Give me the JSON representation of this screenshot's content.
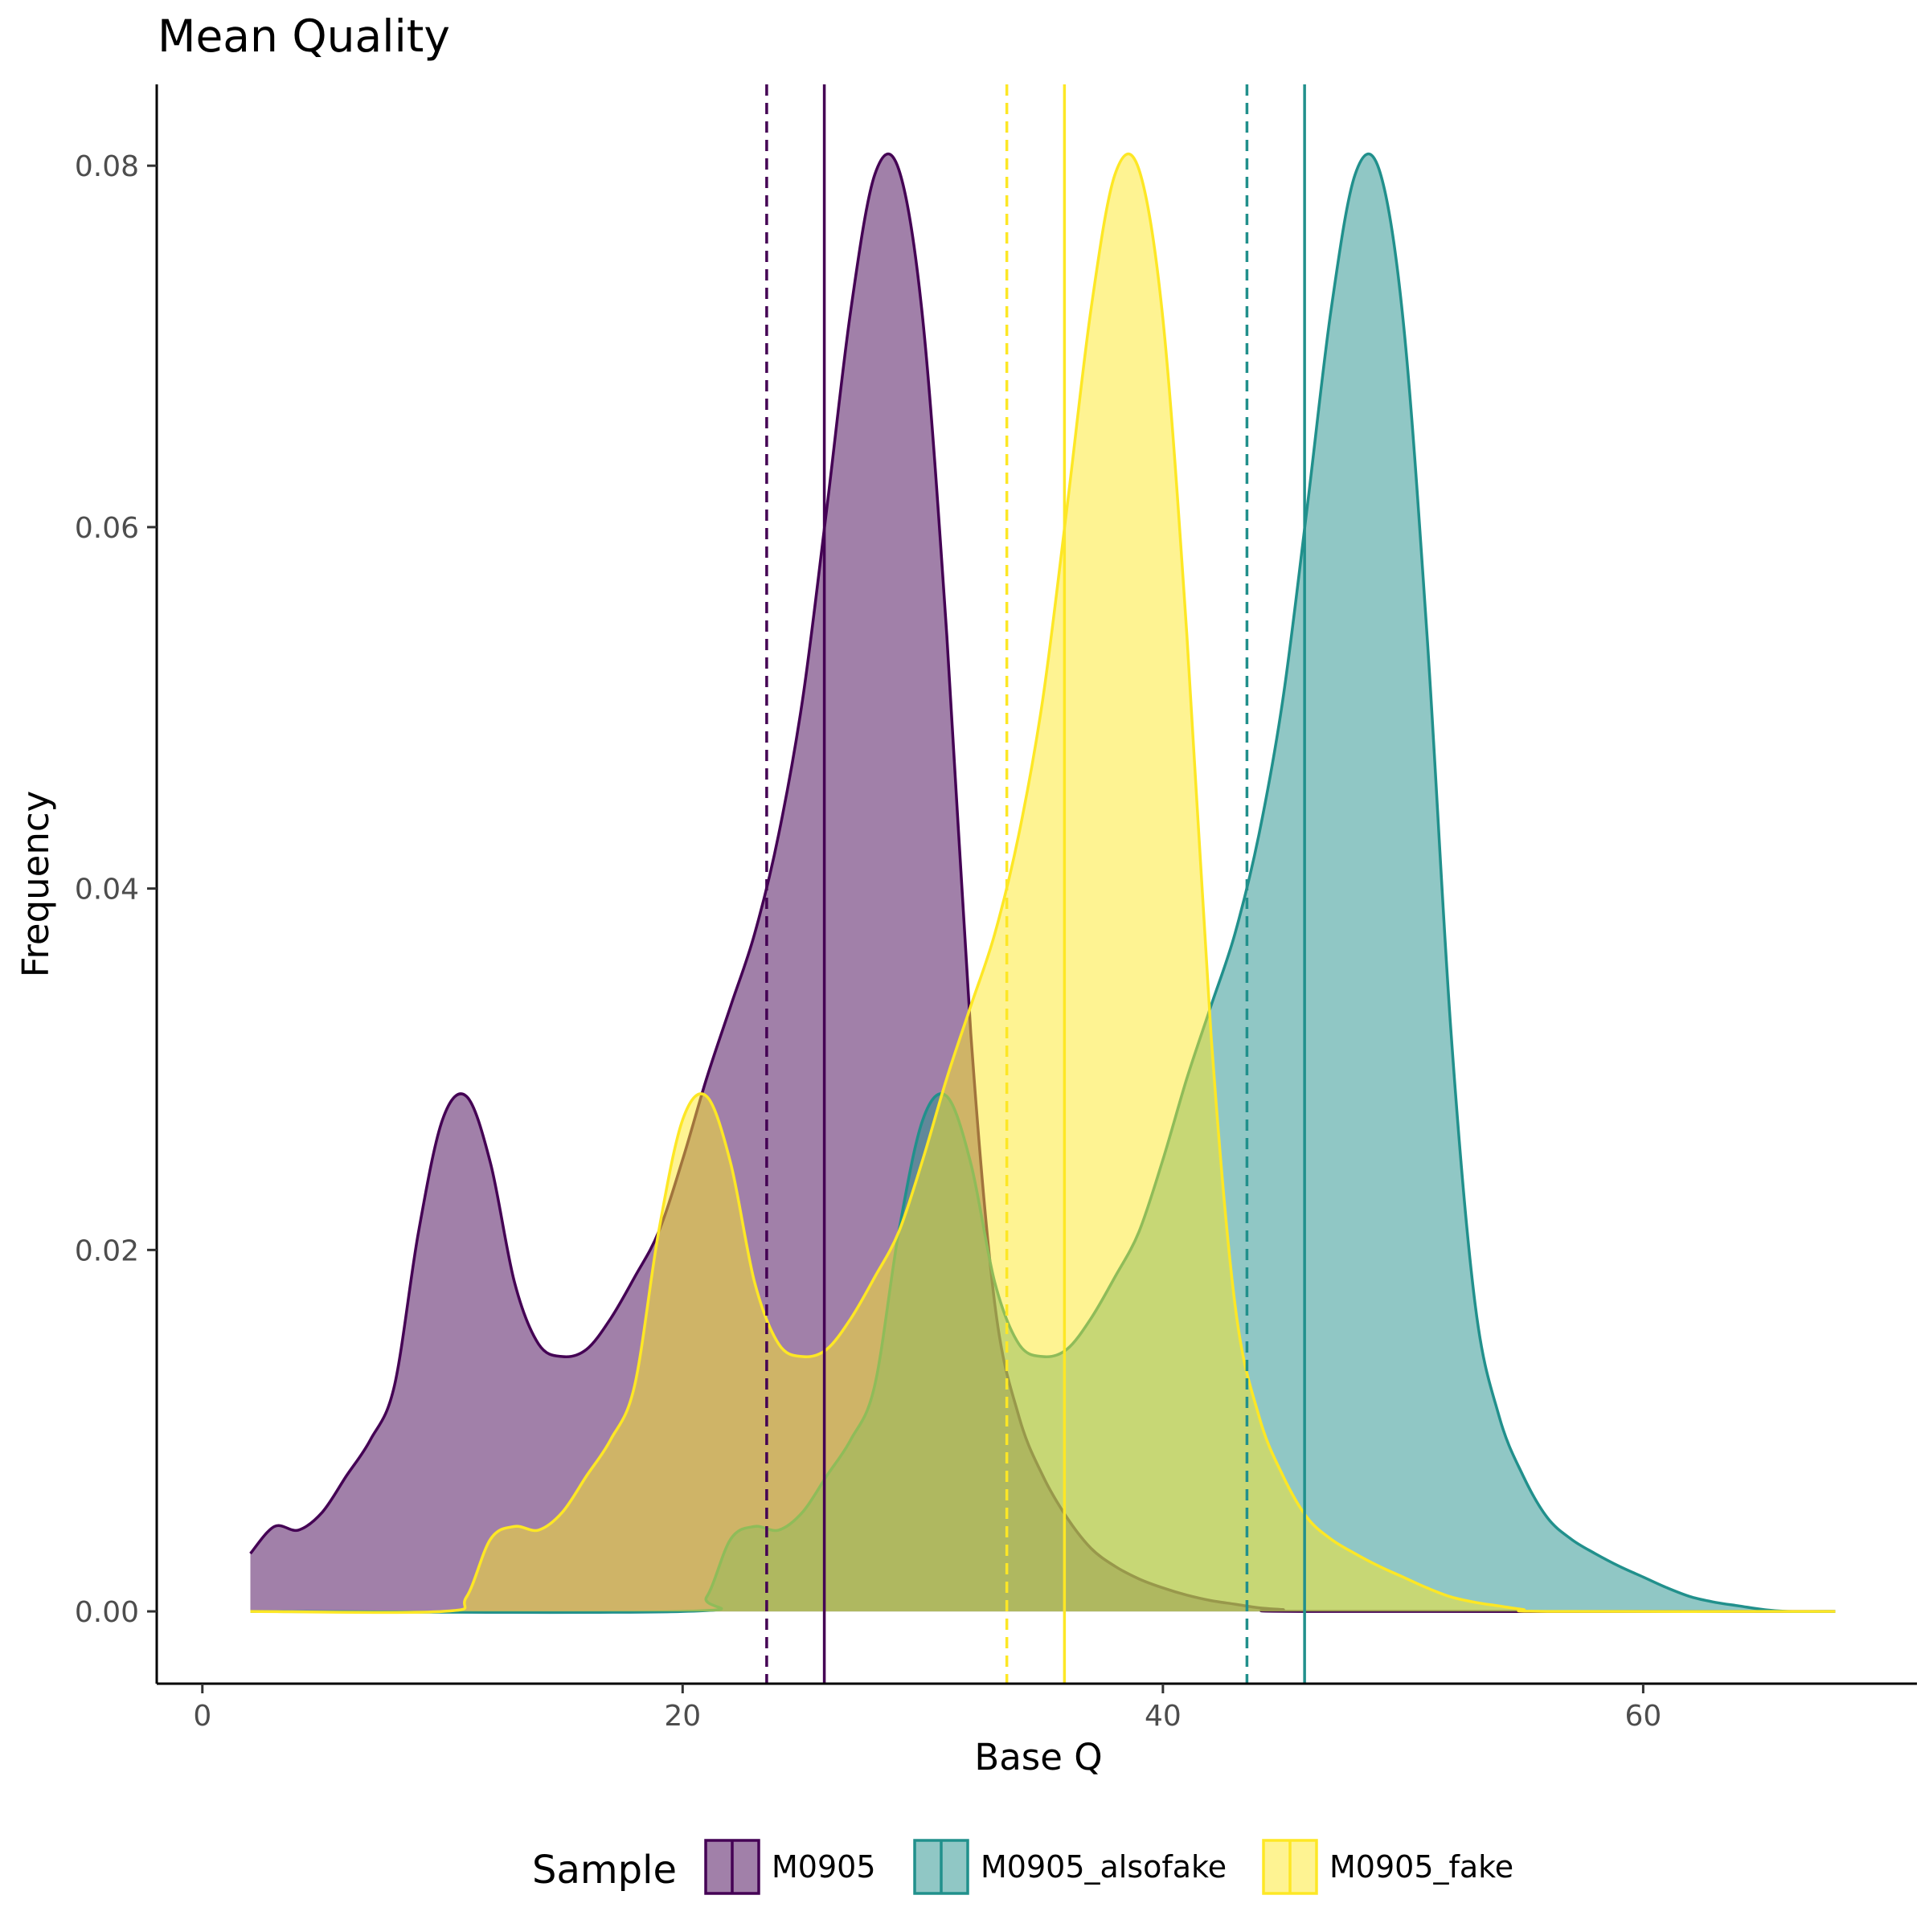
{
  "chart_data": {
    "type": "area",
    "title": "Mean Quality",
    "xlabel": "Base Q",
    "ylabel": "Frequency",
    "xlim": [
      -1.9,
      71.4
    ],
    "ylim": [
      -0.004,
      0.0845
    ],
    "x_ticks": [
      0,
      20,
      40,
      60
    ],
    "x_tick_labels": [
      "0",
      "20",
      "40",
      "60"
    ],
    "y_ticks": [
      0,
      0.02,
      0.04,
      0.06,
      0.08
    ],
    "y_tick_labels": [
      "0.00",
      "0.02",
      "0.04",
      "0.06",
      "0.08"
    ],
    "grid": false,
    "legend": {
      "title": "Sample",
      "position": "bottom",
      "entries": [
        "M0905",
        "M0905_alsofake",
        "M0905_fake"
      ]
    },
    "series": [
      {
        "name": "M0905",
        "color": "#440154",
        "fill": "#440154",
        "fill_opacity": 0.5,
        "mean": 25.9,
        "median": 23.5,
        "points": [
          [
            2,
            0.0032
          ],
          [
            3,
            0.0047
          ],
          [
            4,
            0.0045
          ],
          [
            5,
            0.0055
          ],
          [
            6,
            0.0075
          ],
          [
            7,
            0.0095
          ],
          [
            8,
            0.0125
          ],
          [
            9,
            0.021
          ],
          [
            10,
            0.0272
          ],
          [
            11,
            0.0285
          ],
          [
            12,
            0.0248
          ],
          [
            13,
            0.0182
          ],
          [
            14,
            0.0148
          ],
          [
            15,
            0.0141
          ],
          [
            16,
            0.0145
          ],
          [
            17,
            0.0162
          ],
          [
            18,
            0.0185
          ],
          [
            19,
            0.021
          ],
          [
            20,
            0.025
          ],
          [
            21,
            0.0295
          ],
          [
            22,
            0.0335
          ],
          [
            23,
            0.0375
          ],
          [
            24,
            0.043
          ],
          [
            25,
            0.0505
          ],
          [
            26,
            0.061
          ],
          [
            27,
            0.072
          ],
          [
            28,
            0.0795
          ],
          [
            29,
            0.0798
          ],
          [
            30,
            0.0715
          ],
          [
            31,
            0.054
          ],
          [
            32,
            0.032
          ],
          [
            33,
            0.017
          ],
          [
            34,
            0.0108
          ],
          [
            35,
            0.0075
          ],
          [
            36,
            0.0052
          ],
          [
            37,
            0.0035
          ],
          [
            38,
            0.0025
          ],
          [
            39,
            0.0018
          ],
          [
            40,
            0.0013
          ],
          [
            41,
            0.0009
          ],
          [
            42,
            0.0006
          ],
          [
            43,
            0.0004
          ],
          [
            44,
            0.0002
          ],
          [
            45,
            0.0001
          ],
          [
            46,
            0.0
          ],
          [
            68,
            0.0
          ]
        ]
      },
      {
        "name": "M0905_alsofake",
        "color": "#21908C",
        "fill": "#21908C",
        "fill_opacity": 0.5,
        "mean": 45.9,
        "median": 43.5,
        "points": [
          [
            2,
            0.0
          ],
          [
            20,
            0.0
          ],
          [
            21,
            0.0008
          ],
          [
            22,
            0.004
          ],
          [
            23,
            0.0047
          ],
          [
            24,
            0.0045
          ],
          [
            25,
            0.0055
          ],
          [
            26,
            0.0075
          ],
          [
            27,
            0.0095
          ],
          [
            28,
            0.0125
          ],
          [
            29,
            0.021
          ],
          [
            30,
            0.0272
          ],
          [
            31,
            0.0285
          ],
          [
            32,
            0.0248
          ],
          [
            33,
            0.0182
          ],
          [
            34,
            0.0148
          ],
          [
            35,
            0.0141
          ],
          [
            36,
            0.0145
          ],
          [
            37,
            0.0162
          ],
          [
            38,
            0.0185
          ],
          [
            39,
            0.021
          ],
          [
            40,
            0.025
          ],
          [
            41,
            0.0295
          ],
          [
            42,
            0.0335
          ],
          [
            43,
            0.0375
          ],
          [
            44,
            0.043
          ],
          [
            45,
            0.0505
          ],
          [
            46,
            0.061
          ],
          [
            47,
            0.072
          ],
          [
            48,
            0.0795
          ],
          [
            49,
            0.0798
          ],
          [
            50,
            0.0715
          ],
          [
            51,
            0.054
          ],
          [
            52,
            0.032
          ],
          [
            53,
            0.017
          ],
          [
            54,
            0.0108
          ],
          [
            55,
            0.0075
          ],
          [
            56,
            0.0052
          ],
          [
            57,
            0.004
          ],
          [
            58,
            0.0032
          ],
          [
            59,
            0.0025
          ],
          [
            60,
            0.0019
          ],
          [
            61,
            0.0013
          ],
          [
            62,
            0.0008
          ],
          [
            63,
            0.0005
          ],
          [
            64,
            0.0003
          ],
          [
            65,
            0.0001
          ],
          [
            66,
            0.0
          ],
          [
            68,
            0.0
          ]
        ]
      },
      {
        "name": "M0905_fake",
        "color": "#FDE725",
        "fill": "#FDE725",
        "fill_opacity": 0.5,
        "mean": 35.9,
        "median": 33.5,
        "points": [
          [
            2,
            0.0
          ],
          [
            10,
            0.0
          ],
          [
            11,
            0.0008
          ],
          [
            12,
            0.004
          ],
          [
            13,
            0.0047
          ],
          [
            14,
            0.0045
          ],
          [
            15,
            0.0055
          ],
          [
            16,
            0.0075
          ],
          [
            17,
            0.0095
          ],
          [
            18,
            0.0125
          ],
          [
            19,
            0.021
          ],
          [
            20,
            0.0272
          ],
          [
            21,
            0.0285
          ],
          [
            22,
            0.0248
          ],
          [
            23,
            0.0182
          ],
          [
            24,
            0.0148
          ],
          [
            25,
            0.0141
          ],
          [
            26,
            0.0145
          ],
          [
            27,
            0.0162
          ],
          [
            28,
            0.0185
          ],
          [
            29,
            0.021
          ],
          [
            30,
            0.025
          ],
          [
            31,
            0.0295
          ],
          [
            32,
            0.0335
          ],
          [
            33,
            0.0375
          ],
          [
            34,
            0.043
          ],
          [
            35,
            0.0505
          ],
          [
            36,
            0.061
          ],
          [
            37,
            0.072
          ],
          [
            38,
            0.0795
          ],
          [
            39,
            0.0798
          ],
          [
            40,
            0.0715
          ],
          [
            41,
            0.054
          ],
          [
            42,
            0.032
          ],
          [
            43,
            0.017
          ],
          [
            44,
            0.0108
          ],
          [
            45,
            0.0075
          ],
          [
            46,
            0.0052
          ],
          [
            47,
            0.004
          ],
          [
            48,
            0.0032
          ],
          [
            49,
            0.0025
          ],
          [
            50,
            0.0019
          ],
          [
            51,
            0.0013
          ],
          [
            52,
            0.0008
          ],
          [
            53,
            0.0005
          ],
          [
            54,
            0.0003
          ],
          [
            55,
            0.0001
          ],
          [
            56,
            0.0
          ],
          [
            68,
            0.0
          ]
        ]
      }
    ]
  }
}
